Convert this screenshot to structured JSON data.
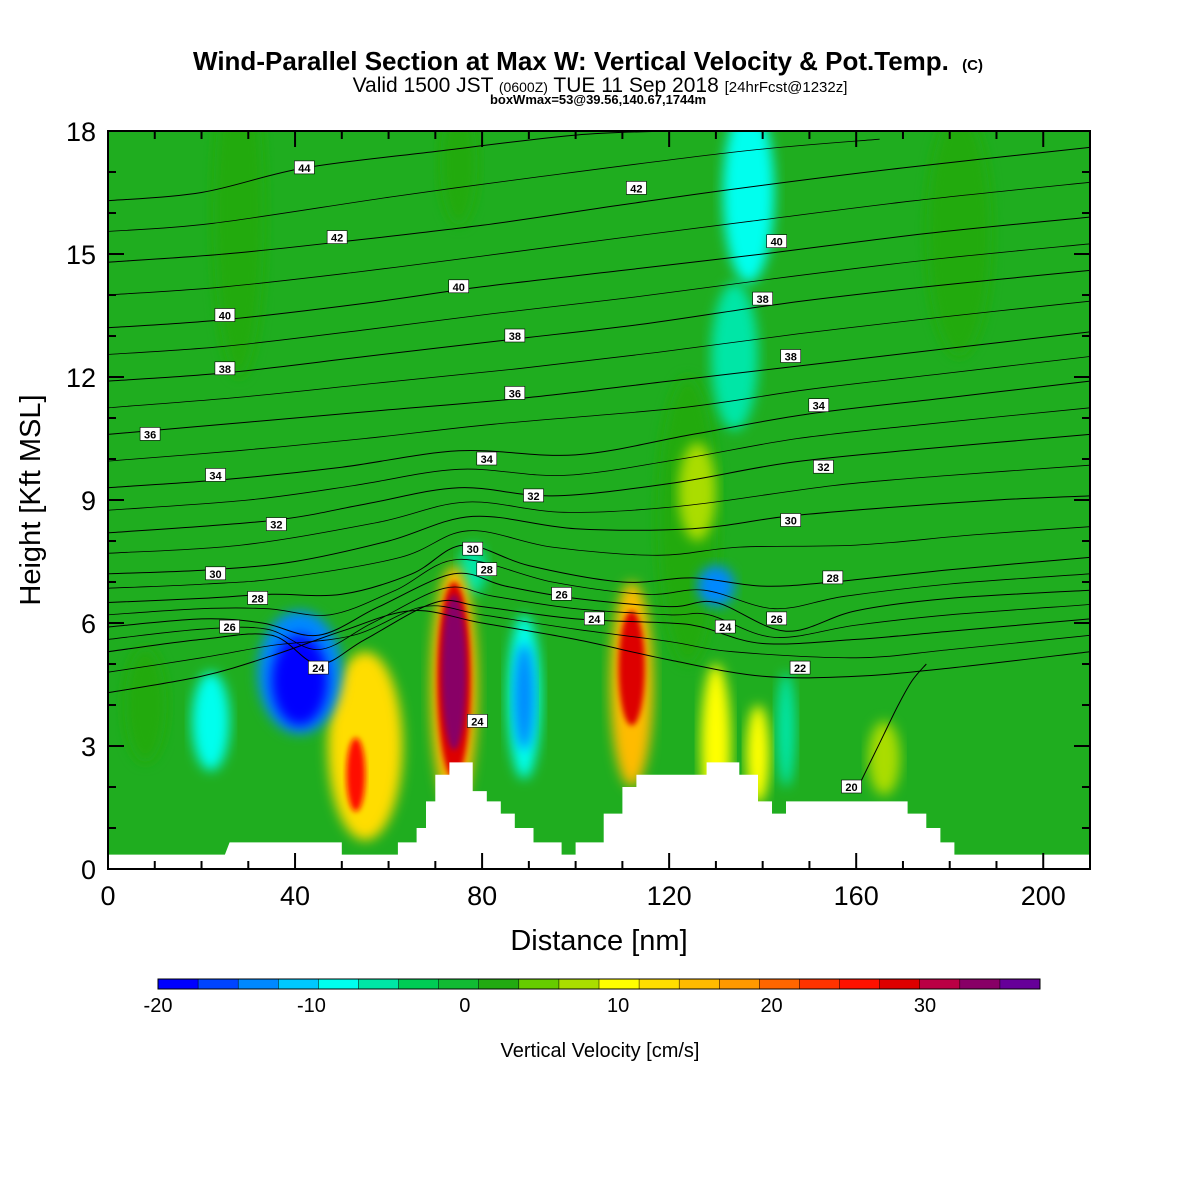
{
  "header": {
    "title": "Wind-Parallel Section at Max W: Vertical Velocity & Pot.Temp.",
    "copyright": "(C)",
    "valid_prefix": "Valid 1500 JST",
    "valid_utc": "(0600Z)",
    "valid_date": "TUE 11 Sep 2018",
    "forecast": "[24hrFcst@1232z]",
    "box_info": "boxWmax=53@39.56,140.67,1744m"
  },
  "colors": {
    "background_green": "#1fad1f",
    "terrain": "#ffffff",
    "contour_line": "#000000"
  },
  "chart_data": {
    "type": "heatmap",
    "xlabel": "Distance [nm]",
    "ylabel": "Height [Kft MSL]",
    "xlim": [
      0,
      210
    ],
    "ylim": [
      0,
      18
    ],
    "x_ticks": [
      0,
      40,
      80,
      120,
      160,
      200
    ],
    "y_ticks": [
      0,
      3,
      6,
      9,
      12,
      15,
      18
    ],
    "colorbar": {
      "label": "Vertical Velocity [cm/s]",
      "tick_values": [
        -20,
        -10,
        0,
        10,
        20,
        30
      ],
      "colors": [
        "#0000ff",
        "#0044ff",
        "#0088ff",
        "#00c8ff",
        "#00ffee",
        "#00e6a6",
        "#00cc55",
        "#11bb33",
        "#22aa11",
        "#66cc00",
        "#aadd00",
        "#ffff00",
        "#ffdd00",
        "#ffbb00",
        "#ff9900",
        "#ff6600",
        "#ff3300",
        "#ff1100",
        "#dd0000",
        "#bb0044",
        "#880066",
        "#660099"
      ]
    },
    "terrain_profile": [
      [
        0,
        0.35
      ],
      [
        25,
        0.35
      ],
      [
        26,
        0.65
      ],
      [
        50,
        0.65
      ],
      [
        50,
        0.35
      ],
      [
        62,
        0.35
      ],
      [
        62,
        0.65
      ],
      [
        66,
        0.65
      ],
      [
        66,
        1.0
      ],
      [
        68,
        1.0
      ],
      [
        68,
        1.65
      ],
      [
        70,
        1.65
      ],
      [
        70,
        2.3
      ],
      [
        73,
        2.3
      ],
      [
        73,
        2.6
      ],
      [
        78,
        2.6
      ],
      [
        78,
        1.9
      ],
      [
        81,
        1.9
      ],
      [
        81,
        1.65
      ],
      [
        84,
        1.65
      ],
      [
        84,
        1.35
      ],
      [
        87,
        1.35
      ],
      [
        87,
        1.0
      ],
      [
        91,
        1.0
      ],
      [
        91,
        0.65
      ],
      [
        97,
        0.65
      ],
      [
        97,
        0.35
      ],
      [
        100,
        0.35
      ],
      [
        100,
        0.65
      ],
      [
        106,
        0.65
      ],
      [
        106,
        1.35
      ],
      [
        110,
        1.35
      ],
      [
        110,
        2.0
      ],
      [
        113,
        2.0
      ],
      [
        113,
        2.3
      ],
      [
        128,
        2.3
      ],
      [
        128,
        2.6
      ],
      [
        135,
        2.6
      ],
      [
        135,
        2.3
      ],
      [
        139,
        2.3
      ],
      [
        139,
        1.65
      ],
      [
        142,
        1.65
      ],
      [
        142,
        1.35
      ],
      [
        145,
        1.35
      ],
      [
        145,
        1.65
      ],
      [
        171,
        1.65
      ],
      [
        171,
        1.35
      ],
      [
        175,
        1.35
      ],
      [
        175,
        1.0
      ],
      [
        178,
        1.0
      ],
      [
        178,
        0.65
      ],
      [
        181,
        0.65
      ],
      [
        181,
        0.35
      ],
      [
        210,
        0.35
      ]
    ],
    "w_blobs": [
      {
        "x": 74,
        "y": 4.8,
        "rx": 2.6,
        "ry": 1.9,
        "w": 33
      },
      {
        "x": 74,
        "y": 4.6,
        "rx": 3.6,
        "ry": 2.4,
        "w": 28
      },
      {
        "x": 74,
        "y": 4.4,
        "rx": 5.0,
        "ry": 3.0,
        "w": 16
      },
      {
        "x": 112,
        "y": 4.9,
        "rx": 2.8,
        "ry": 1.4,
        "w": 28
      },
      {
        "x": 112,
        "y": 4.5,
        "rx": 4.6,
        "ry": 2.5,
        "w": 16
      },
      {
        "x": 53,
        "y": 2.3,
        "rx": 2.0,
        "ry": 0.9,
        "w": 25
      },
      {
        "x": 55,
        "y": 3.0,
        "rx": 8.0,
        "ry": 2.3,
        "w": 13
      },
      {
        "x": 130,
        "y": 3.0,
        "rx": 3.2,
        "ry": 2.0,
        "w": 10
      },
      {
        "x": 139,
        "y": 2.8,
        "rx": 2.5,
        "ry": 1.2,
        "w": 9
      },
      {
        "x": 166,
        "y": 2.7,
        "rx": 3.4,
        "ry": 0.9,
        "w": 7
      },
      {
        "x": 126,
        "y": 9.2,
        "rx": 4.0,
        "ry": 1.2,
        "w": 8
      },
      {
        "x": 124,
        "y": 8.5,
        "rx": 6.5,
        "ry": 3.5,
        "w": 3
      },
      {
        "x": 41,
        "y": 4.6,
        "rx": 6.0,
        "ry": 1.1,
        "w": -19
      },
      {
        "x": 41,
        "y": 4.8,
        "rx": 9.0,
        "ry": 1.5,
        "w": -13
      },
      {
        "x": 89,
        "y": 4.2,
        "rx": 2.2,
        "ry": 1.3,
        "w": -14
      },
      {
        "x": 89,
        "y": 4.2,
        "rx": 3.5,
        "ry": 2.0,
        "w": -9
      },
      {
        "x": 130,
        "y": 6.9,
        "rx": 4.0,
        "ry": 0.5,
        "w": -14
      },
      {
        "x": 137,
        "y": 16.5,
        "rx": 5.5,
        "ry": 2.2,
        "w": -8
      },
      {
        "x": 134,
        "y": 12.5,
        "rx": 5.0,
        "ry": 1.8,
        "w": -5
      },
      {
        "x": 22,
        "y": 3.6,
        "rx": 4.0,
        "ry": 1.2,
        "w": -8
      },
      {
        "x": 145,
        "y": 3.4,
        "rx": 2.0,
        "ry": 1.4,
        "w": -5
      },
      {
        "x": 78,
        "y": 7.3,
        "rx": 3.0,
        "ry": 0.6,
        "w": -5
      },
      {
        "x": 28,
        "y": 16.0,
        "rx": 5.5,
        "ry": 4.0,
        "w": 3
      },
      {
        "x": 75,
        "y": 17.2,
        "rx": 4.0,
        "ry": 1.5,
        "w": 3
      },
      {
        "x": 182,
        "y": 15.5,
        "rx": 7.0,
        "ry": 3.0,
        "w": 3
      },
      {
        "x": 8,
        "y": 4.0,
        "rx": 4.5,
        "ry": 1.4,
        "w": 3
      }
    ],
    "theta_contours": [
      {
        "level": 20,
        "points": [
          [
            160,
            1.9
          ],
          [
            163,
            2.6
          ],
          [
            166,
            3.3
          ],
          [
            169,
            4.0
          ],
          [
            172,
            4.6
          ],
          [
            175,
            5.0
          ]
        ]
      },
      {
        "level": 22,
        "points": [
          [
            0,
            4.3
          ],
          [
            20,
            4.7
          ],
          [
            35,
            5.2
          ],
          [
            50,
            5.8
          ],
          [
            65,
            6.3
          ],
          [
            80,
            6.0
          ],
          [
            100,
            5.6
          ],
          [
            120,
            5.1
          ],
          [
            140,
            4.7
          ],
          [
            160,
            4.7
          ],
          [
            180,
            4.9
          ],
          [
            210,
            5.3
          ]
        ]
      },
      {
        "level": 24,
        "points": [
          [
            0,
            5.3
          ],
          [
            20,
            5.6
          ],
          [
            35,
            5.7
          ],
          [
            45,
            5.0
          ],
          [
            55,
            5.6
          ],
          [
            70,
            6.5
          ],
          [
            80,
            6.4
          ],
          [
            100,
            6.1
          ],
          [
            120,
            6.0
          ],
          [
            127,
            5.9
          ],
          [
            140,
            5.5
          ],
          [
            160,
            5.6
          ],
          [
            180,
            5.8
          ],
          [
            210,
            6.1
          ]
        ]
      },
      {
        "level": 26,
        "points": [
          [
            0,
            5.9
          ],
          [
            20,
            6.1
          ],
          [
            33,
            6.0
          ],
          [
            45,
            5.7
          ],
          [
            58,
            6.4
          ],
          [
            74,
            7.2
          ],
          [
            85,
            6.9
          ],
          [
            100,
            6.6
          ],
          [
            120,
            6.4
          ],
          [
            130,
            6.5
          ],
          [
            145,
            5.8
          ],
          [
            160,
            6.3
          ],
          [
            180,
            6.6
          ],
          [
            210,
            6.8
          ]
        ]
      },
      {
        "level": 28,
        "points": [
          [
            0,
            6.5
          ],
          [
            20,
            6.6
          ],
          [
            35,
            6.7
          ],
          [
            50,
            6.7
          ],
          [
            65,
            7.2
          ],
          [
            76,
            7.9
          ],
          [
            90,
            7.4
          ],
          [
            110,
            7.0
          ],
          [
            125,
            7.1
          ],
          [
            140,
            6.9
          ],
          [
            155,
            7.0
          ],
          [
            180,
            7.3
          ],
          [
            210,
            7.6
          ]
        ]
      },
      {
        "level": 30,
        "points": [
          [
            0,
            7.2
          ],
          [
            22,
            7.3
          ],
          [
            40,
            7.5
          ],
          [
            60,
            8.0
          ],
          [
            78,
            8.6
          ],
          [
            100,
            8.3
          ],
          [
            125,
            8.3
          ],
          [
            145,
            8.6
          ],
          [
            165,
            8.8
          ],
          [
            190,
            9.0
          ],
          [
            210,
            9.1
          ]
        ]
      },
      {
        "level": 32,
        "points": [
          [
            0,
            8.2
          ],
          [
            35,
            8.5
          ],
          [
            55,
            8.9
          ],
          [
            75,
            9.3
          ],
          [
            95,
            9.1
          ],
          [
            120,
            9.4
          ],
          [
            145,
            9.9
          ],
          [
            170,
            10.2
          ],
          [
            210,
            10.6
          ]
        ]
      },
      {
        "level": 34,
        "points": [
          [
            0,
            9.3
          ],
          [
            25,
            9.5
          ],
          [
            50,
            9.8
          ],
          [
            75,
            10.2
          ],
          [
            100,
            10.1
          ],
          [
            125,
            10.6
          ],
          [
            150,
            11.1
          ],
          [
            180,
            11.5
          ],
          [
            210,
            11.9
          ]
        ]
      },
      {
        "level": 36,
        "points": [
          [
            0,
            10.6
          ],
          [
            30,
            10.9
          ],
          [
            60,
            11.2
          ],
          [
            90,
            11.5
          ],
          [
            120,
            11.9
          ],
          [
            150,
            12.3
          ],
          [
            180,
            12.7
          ],
          [
            210,
            13.1
          ]
        ]
      },
      {
        "level": 38,
        "points": [
          [
            0,
            11.9
          ],
          [
            25,
            12.1
          ],
          [
            55,
            12.5
          ],
          [
            85,
            12.9
          ],
          [
            115,
            13.3
          ],
          [
            145,
            13.8
          ],
          [
            175,
            14.2
          ],
          [
            210,
            14.6
          ]
        ]
      },
      {
        "level": 40,
        "points": [
          [
            0,
            13.2
          ],
          [
            25,
            13.4
          ],
          [
            55,
            13.8
          ],
          [
            80,
            14.2
          ],
          [
            110,
            14.6
          ],
          [
            140,
            15.0
          ],
          [
            175,
            15.5
          ],
          [
            210,
            15.9
          ]
        ]
      },
      {
        "level": 42,
        "points": [
          [
            0,
            14.8
          ],
          [
            25,
            15.0
          ],
          [
            50,
            15.3
          ],
          [
            80,
            15.7
          ],
          [
            110,
            16.2
          ],
          [
            135,
            16.6
          ],
          [
            170,
            17.1
          ],
          [
            210,
            17.6
          ]
        ]
      },
      {
        "level": 44,
        "points": [
          [
            0,
            16.3
          ],
          [
            20,
            16.5
          ],
          [
            42,
            17.1
          ],
          [
            70,
            17.5
          ],
          [
            100,
            17.9
          ],
          [
            120,
            18.0
          ]
        ]
      }
    ],
    "theta_labels": [
      {
        "text": "44",
        "x": 42,
        "y": 17.1
      },
      {
        "text": "42",
        "x": 49,
        "y": 15.4
      },
      {
        "text": "42",
        "x": 113,
        "y": 16.6
      },
      {
        "text": "40",
        "x": 25,
        "y": 13.5
      },
      {
        "text": "40",
        "x": 75,
        "y": 14.2
      },
      {
        "text": "40",
        "x": 143,
        "y": 15.3
      },
      {
        "text": "38",
        "x": 25,
        "y": 12.2
      },
      {
        "text": "38",
        "x": 87,
        "y": 13.0
      },
      {
        "text": "38",
        "x": 140,
        "y": 13.9
      },
      {
        "text": "38",
        "x": 146,
        "y": 12.5
      },
      {
        "text": "36",
        "x": 9,
        "y": 10.6
      },
      {
        "text": "36",
        "x": 87,
        "y": 11.6
      },
      {
        "text": "34",
        "x": 23,
        "y": 9.6
      },
      {
        "text": "34",
        "x": 81,
        "y": 10.0
      },
      {
        "text": "34",
        "x": 152,
        "y": 11.3
      },
      {
        "text": "32",
        "x": 36,
        "y": 8.4
      },
      {
        "text": "32",
        "x": 91,
        "y": 9.1
      },
      {
        "text": "32",
        "x": 153,
        "y": 9.8
      },
      {
        "text": "30",
        "x": 23,
        "y": 7.2
      },
      {
        "text": "30",
        "x": 78,
        "y": 7.8
      },
      {
        "text": "30",
        "x": 146,
        "y": 8.5
      },
      {
        "text": "28",
        "x": 32,
        "y": 6.6
      },
      {
        "text": "28",
        "x": 81,
        "y": 7.3
      },
      {
        "text": "28",
        "x": 155,
        "y": 7.1
      },
      {
        "text": "26",
        "x": 26,
        "y": 5.9
      },
      {
        "text": "26",
        "x": 97,
        "y": 6.7
      },
      {
        "text": "26",
        "x": 143,
        "y": 6.1
      },
      {
        "text": "24",
        "x": 45,
        "y": 4.9
      },
      {
        "text": "24",
        "x": 104,
        "y": 6.1
      },
      {
        "text": "24",
        "x": 132,
        "y": 5.9
      },
      {
        "text": "24",
        "x": 79,
        "y": 3.6
      },
      {
        "text": "22",
        "x": 148,
        "y": 4.9
      },
      {
        "text": "20",
        "x": 159,
        "y": 2.0
      }
    ]
  }
}
